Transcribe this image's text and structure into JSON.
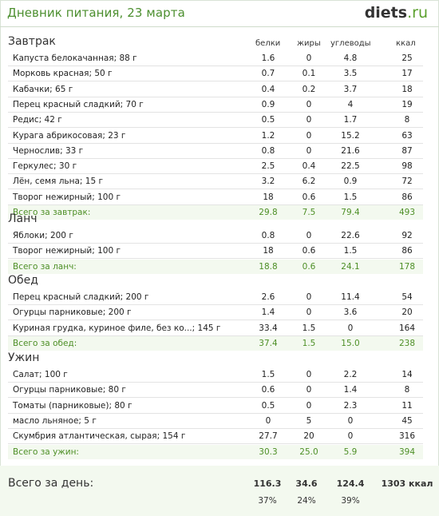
{
  "header": {
    "title": "Дневник питания, 23 марта",
    "logo_main": "diets",
    "logo_tld": ".ru"
  },
  "columns": [
    "белки",
    "жиры",
    "углеводы",
    "ккал"
  ],
  "meals": [
    {
      "name": "Завтрак",
      "items": [
        {
          "name": "Капуста белокачанная; 88 г",
          "p": "1.6",
          "f": "0",
          "c": "4.8",
          "k": "25"
        },
        {
          "name": "Морковь красная; 50 г",
          "p": "0.7",
          "f": "0.1",
          "c": "3.5",
          "k": "17"
        },
        {
          "name": "Кабачки; 65 г",
          "p": "0.4",
          "f": "0.2",
          "c": "3.7",
          "k": "18"
        },
        {
          "name": "Перец красный сладкий; 70 г",
          "p": "0.9",
          "f": "0",
          "c": "4",
          "k": "19"
        },
        {
          "name": "Редис; 42 г",
          "p": "0.5",
          "f": "0",
          "c": "1.7",
          "k": "8"
        },
        {
          "name": "Курага абрикосовая; 23 г",
          "p": "1.2",
          "f": "0",
          "c": "15.2",
          "k": "63"
        },
        {
          "name": "Чернослив; 33 г",
          "p": "0.8",
          "f": "0",
          "c": "21.6",
          "k": "87"
        },
        {
          "name": "Геркулес; 30 г",
          "p": "2.5",
          "f": "0.4",
          "c": "22.5",
          "k": "98"
        },
        {
          "name": "Лён, семя льна; 15 г",
          "p": "3.2",
          "f": "6.2",
          "c": "0.9",
          "k": "72"
        },
        {
          "name": "Творог нежирный; 100 г",
          "p": "18",
          "f": "0.6",
          "c": "1.5",
          "k": "86"
        }
      ],
      "total": {
        "name": "Всего за завтрак:",
        "p": "29.8",
        "f": "7.5",
        "c": "79.4",
        "k": "493"
      }
    },
    {
      "name": "Ланч",
      "items": [
        {
          "name": "Яблоки; 200 г",
          "p": "0.8",
          "f": "0",
          "c": "22.6",
          "k": "92"
        },
        {
          "name": "Творог нежирный; 100 г",
          "p": "18",
          "f": "0.6",
          "c": "1.5",
          "k": "86"
        }
      ],
      "total": {
        "name": "Всего за ланч:",
        "p": "18.8",
        "f": "0.6",
        "c": "24.1",
        "k": "178"
      }
    },
    {
      "name": "Обед",
      "items": [
        {
          "name": "Перец красный сладкий; 200 г",
          "p": "2.6",
          "f": "0",
          "c": "11.4",
          "k": "54"
        },
        {
          "name": "Огурцы парниковые; 200 г",
          "p": "1.4",
          "f": "0",
          "c": "3.6",
          "k": "20"
        },
        {
          "name": "Куриная грудка, куриное филе, без ко...; 145 г",
          "p": "33.4",
          "f": "1.5",
          "c": "0",
          "k": "164"
        }
      ],
      "total": {
        "name": "Всего за обед:",
        "p": "37.4",
        "f": "1.5",
        "c": "15.0",
        "k": "238"
      }
    },
    {
      "name": "Ужин",
      "items": [
        {
          "name": "Салат; 100 г",
          "p": "1.5",
          "f": "0",
          "c": "2.2",
          "k": "14"
        },
        {
          "name": "Огурцы парниковые; 80 г",
          "p": "0.6",
          "f": "0",
          "c": "1.4",
          "k": "8"
        },
        {
          "name": "Томаты (парниковые); 80 г",
          "p": "0.5",
          "f": "0",
          "c": "2.3",
          "k": "11"
        },
        {
          "name": "масло льняное; 5 г",
          "p": "0",
          "f": "5",
          "c": "0",
          "k": "45"
        },
        {
          "name": "Скумбрия атлантическая, сырая; 154 г",
          "p": "27.7",
          "f": "20",
          "c": "0",
          "k": "316"
        }
      ],
      "total": {
        "name": "Всего за ужин:",
        "p": "30.3",
        "f": "25.0",
        "c": "5.9",
        "k": "394"
      }
    }
  ],
  "day_total": {
    "label": "Всего за день:",
    "p": "116.3",
    "f": "34.6",
    "c": "124.4",
    "k": "1303 ккал",
    "p_pct": "37%",
    "f_pct": "24%",
    "c_pct": "39%"
  },
  "colors": {
    "accent": "#4c8f2f",
    "total_bg": "#f3f9ef",
    "total_text": "#4d8f26"
  }
}
